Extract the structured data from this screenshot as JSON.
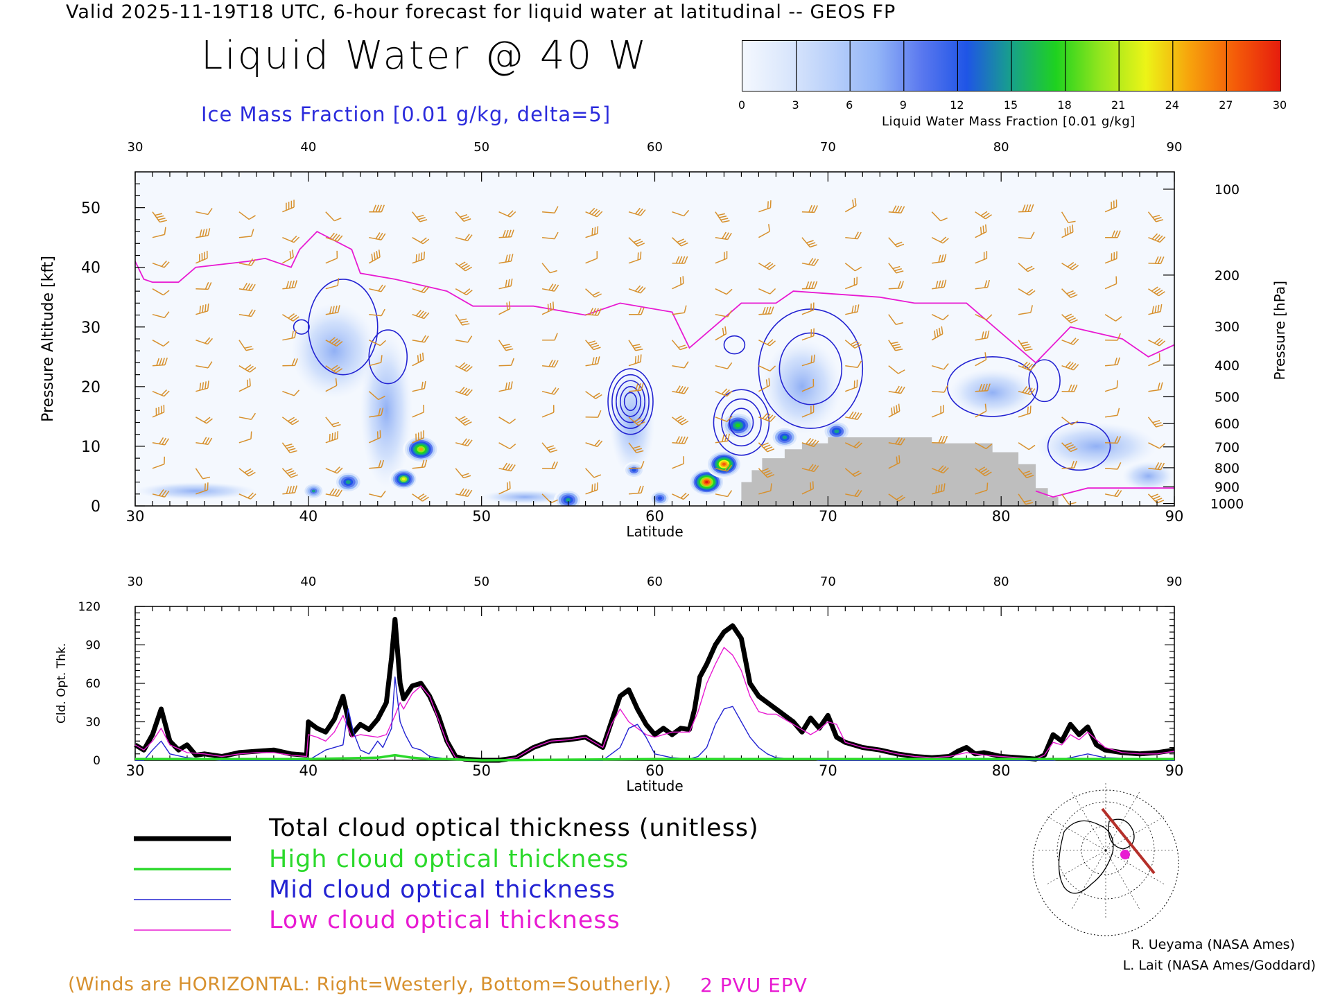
{
  "header": {
    "valid_line": "Valid 2025-11-19T18 UTC, 6-hour forecast for liquid water at latitudinal -- GEOS FP",
    "title": "Liquid Water @ 40 W",
    "subtitle": "Ice Mass Fraction [0.01 g/kg, delta=5]"
  },
  "colorbar": {
    "label": "Liquid Water Mass Fraction [0.01 g/kg]",
    "ticks": [
      "0",
      "3",
      "6",
      "9",
      "12",
      "15",
      "18",
      "21",
      "24",
      "27",
      "30"
    ],
    "colors": [
      "#f4f8fe",
      "#dbe7fc",
      "#b9d0fa",
      "#93b5f7",
      "#5a78ef",
      "#1f55e6",
      "#17a18a",
      "#1fd21f",
      "#96e61e",
      "#ecf417",
      "#f7a10c",
      "#f45b09",
      "#e61d0d"
    ]
  },
  "chart_data": [
    {
      "type": "heatmap",
      "title": "Liquid Water @ 40 W",
      "xlabel": "Latitude",
      "ylabel": "Pressure Altitude [kft]",
      "ylabel_right": "Pressure [hPa]",
      "xlim": [
        30,
        90
      ],
      "ylim": [
        0,
        56
      ],
      "x_ticks": [
        "30",
        "40",
        "50",
        "60",
        "70",
        "80",
        "90"
      ],
      "y_ticks": [
        "0",
        "10",
        "20",
        "30",
        "40",
        "50"
      ],
      "pressure_ticks": [
        "100",
        "200",
        "300",
        "400",
        "500",
        "600",
        "700",
        "800",
        "900",
        "1000"
      ],
      "pressure_alt_kft": [
        53.1,
        38.7,
        30.1,
        23.6,
        18.3,
        13.8,
        9.9,
        6.4,
        3.2,
        0.4
      ],
      "liquid_water_blobs": [
        {
          "lat": 46.5,
          "alt_kft": 9.5,
          "peak": 24,
          "size": 1
        },
        {
          "lat": 45.5,
          "alt_kft": 4.5,
          "peak": 22,
          "size": 0.8
        },
        {
          "lat": 42.3,
          "alt_kft": 4.0,
          "peak": 16,
          "size": 0.8
        },
        {
          "lat": 40.3,
          "alt_kft": 2.5,
          "peak": 14,
          "size": 0.6
        },
        {
          "lat": 63.0,
          "alt_kft": 4.0,
          "peak": 30,
          "size": 1
        },
        {
          "lat": 64.0,
          "alt_kft": 7.0,
          "peak": 28,
          "size": 1
        },
        {
          "lat": 64.8,
          "alt_kft": 13.5,
          "peak": 18,
          "size": 1
        },
        {
          "lat": 67.5,
          "alt_kft": 11.5,
          "peak": 16,
          "size": 0.8
        },
        {
          "lat": 70.5,
          "alt_kft": 12.5,
          "peak": 15,
          "size": 0.8
        },
        {
          "lat": 55.0,
          "alt_kft": 1.0,
          "peak": 16,
          "size": 0.8
        },
        {
          "lat": 58.8,
          "alt_kft": 6.0,
          "peak": 12,
          "size": 0.6
        },
        {
          "lat": 60.3,
          "alt_kft": 1.3,
          "peak": 13,
          "size": 0.6
        }
      ],
      "terrain": [
        [
          65.0,
          0
        ],
        [
          65.0,
          4
        ],
        [
          65.6,
          4
        ],
        [
          65.6,
          6
        ],
        [
          66.2,
          6
        ],
        [
          66.2,
          8
        ],
        [
          67.5,
          8
        ],
        [
          67.5,
          9.5
        ],
        [
          68.5,
          9.5
        ],
        [
          68.5,
          10.5
        ],
        [
          70.0,
          10.5
        ],
        [
          70.0,
          11.5
        ],
        [
          76.0,
          11.5
        ],
        [
          76.0,
          10.5
        ],
        [
          79.5,
          10.5
        ],
        [
          79.5,
          9
        ],
        [
          81.0,
          9
        ],
        [
          81.0,
          7
        ],
        [
          82.0,
          7
        ],
        [
          82.0,
          3
        ],
        [
          82.7,
          3
        ],
        [
          82.7,
          1.5
        ],
        [
          83.3,
          1.5
        ],
        [
          83.3,
          0
        ]
      ],
      "pvu2_epv_line": [
        [
          30,
          41
        ],
        [
          30.5,
          38
        ],
        [
          31,
          37.5
        ],
        [
          32.5,
          37.5
        ],
        [
          33.5,
          40
        ],
        [
          36.5,
          41
        ],
        [
          37.5,
          41.5
        ],
        [
          39,
          40
        ],
        [
          39.5,
          43
        ],
        [
          40.5,
          46
        ],
        [
          42.5,
          43
        ],
        [
          43,
          39
        ],
        [
          45,
          38
        ],
        [
          48,
          36
        ],
        [
          49.5,
          33.5
        ],
        [
          53,
          33.5
        ],
        [
          56,
          32
        ],
        [
          58,
          34
        ],
        [
          61,
          32.5
        ],
        [
          62,
          26.5
        ],
        [
          65,
          34
        ],
        [
          67,
          34
        ],
        [
          68,
          36
        ],
        [
          73,
          35
        ],
        [
          75,
          34
        ],
        [
          78,
          34
        ],
        [
          82,
          24
        ],
        [
          84,
          30
        ],
        [
          87,
          28
        ],
        [
          88.5,
          25
        ],
        [
          90,
          27
        ]
      ],
      "pvu2_low_line": [
        [
          82,
          2.5
        ],
        [
          83,
          1.5
        ],
        [
          85,
          3
        ],
        [
          88,
          3
        ],
        [
          90,
          3
        ]
      ],
      "ice_contours": [
        {
          "lat": 42.0,
          "alt_kft": 30,
          "rx": 2.0,
          "ry": 8,
          "levels": 1
        },
        {
          "lat": 44.6,
          "alt_kft": 25,
          "rx": 1.1,
          "ry": 4.5,
          "levels": 1
        },
        {
          "lat": 39.6,
          "alt_kft": 30,
          "rx": 0.45,
          "ry": 1.2,
          "levels": 1
        },
        {
          "lat": 58.6,
          "alt_kft": 17.5,
          "rx": 1.3,
          "ry": 5.5,
          "levels": 5
        },
        {
          "lat": 64.6,
          "alt_kft": 27,
          "rx": 0.6,
          "ry": 1.5,
          "levels": 1
        },
        {
          "lat": 65.0,
          "alt_kft": 14,
          "rx": 1.6,
          "ry": 5.5,
          "levels": 3
        },
        {
          "lat": 69.0,
          "alt_kft": 23,
          "rx": 3.0,
          "ry": 10,
          "levels": 2
        },
        {
          "lat": 79.5,
          "alt_kft": 20,
          "rx": 2.6,
          "ry": 5,
          "levels": 1
        },
        {
          "lat": 82.5,
          "alt_kft": 21,
          "rx": 0.9,
          "ry": 3.5,
          "levels": 1
        },
        {
          "lat": 84.5,
          "alt_kft": 10,
          "rx": 1.8,
          "ry": 4,
          "levels": 1
        }
      ],
      "ice_shading": [
        {
          "lat": 41.5,
          "alt_kft": 26,
          "rx": 2.5,
          "ry": 8
        },
        {
          "lat": 44.5,
          "alt_kft": 16,
          "rx": 1.5,
          "ry": 13
        },
        {
          "lat": 58.7,
          "alt_kft": 14,
          "rx": 1.3,
          "ry": 9
        },
        {
          "lat": 68.5,
          "alt_kft": 20,
          "rx": 2.3,
          "ry": 8
        },
        {
          "lat": 79.5,
          "alt_kft": 19,
          "rx": 2.5,
          "ry": 4
        },
        {
          "lat": 85.5,
          "alt_kft": 10,
          "rx": 3.5,
          "ry": 4
        },
        {
          "lat": 33.5,
          "alt_kft": 2.5,
          "rx": 3.5,
          "ry": 1.5
        },
        {
          "lat": 52.5,
          "alt_kft": 1.5,
          "rx": 2.5,
          "ry": 1.2
        },
        {
          "lat": 88.5,
          "alt_kft": 5,
          "rx": 1.5,
          "ry": 2.5
        }
      ]
    },
    {
      "type": "line",
      "xlabel": "Latitude",
      "ylabel": "Cld. Opt. Thk.",
      "xlim": [
        30,
        90
      ],
      "ylim": [
        0,
        120
      ],
      "x_ticks": [
        "30",
        "40",
        "50",
        "60",
        "70",
        "80",
        "90"
      ],
      "y_ticks": [
        "0",
        "30",
        "60",
        "90",
        "120"
      ],
      "series": [
        {
          "name": "Total cloud optical thickness (unitless)",
          "color": "#000000",
          "x": [
            30,
            30.5,
            31,
            31.5,
            32,
            32.5,
            33,
            33.5,
            34,
            35,
            36,
            37,
            38,
            39,
            39.9,
            40,
            40.5,
            41,
            41.5,
            42,
            42.5,
            43,
            43.5,
            44,
            44.5,
            44.8,
            45,
            45.3,
            45.5,
            46,
            46.5,
            47,
            47.5,
            48,
            48.5,
            49,
            50,
            51,
            52,
            53,
            54,
            55,
            56,
            57,
            57.5,
            58,
            58.5,
            59,
            59.5,
            60,
            60.5,
            61,
            61.5,
            62,
            62.3,
            62.6,
            63,
            63.5,
            64,
            64.5,
            65,
            65.5,
            66,
            67,
            68,
            68.5,
            69,
            69.5,
            70,
            70.5,
            71,
            72,
            73,
            74,
            75,
            76,
            77,
            77.5,
            78,
            78.5,
            79,
            80,
            81,
            82,
            82.5,
            83,
            83.5,
            84,
            84.5,
            85,
            85.5,
            86,
            87,
            88,
            89,
            90
          ],
          "y": [
            12,
            8,
            20,
            40,
            15,
            8,
            12,
            4,
            5,
            3,
            6,
            7,
            8,
            5,
            4,
            30,
            25,
            22,
            32,
            50,
            20,
            28,
            24,
            32,
            45,
            80,
            110,
            60,
            48,
            58,
            60,
            50,
            35,
            15,
            3,
            1,
            0,
            0,
            2,
            10,
            15,
            16,
            18,
            10,
            30,
            50,
            55,
            40,
            28,
            20,
            25,
            20,
            25,
            24,
            40,
            65,
            75,
            90,
            100,
            105,
            95,
            60,
            50,
            40,
            30,
            22,
            33,
            25,
            35,
            18,
            14,
            10,
            8,
            5,
            3,
            2,
            3,
            7,
            10,
            5,
            6,
            3,
            2,
            1,
            4,
            20,
            15,
            28,
            20,
            26,
            12,
            8,
            6,
            5,
            6,
            8
          ]
        },
        {
          "name": "High cloud optical thickness",
          "color": "#2bd92b",
          "x": [
            30,
            40,
            44,
            45,
            46,
            47,
            48,
            50,
            60,
            70,
            80,
            90
          ],
          "y": [
            1,
            1,
            2,
            4,
            2,
            1,
            1,
            0,
            1,
            1,
            1,
            1
          ]
        },
        {
          "name": "Mid cloud optical thickness",
          "color": "#2323d2",
          "x": [
            30,
            30.5,
            31,
            31.5,
            32,
            33,
            34,
            35,
            40,
            41,
            42,
            42.3,
            42.6,
            43,
            43.5,
            44,
            44.3,
            44.8,
            45,
            45.3,
            45.6,
            46,
            46.5,
            47,
            48,
            50,
            57,
            58,
            58.5,
            59,
            59.5,
            60,
            61,
            62,
            62.5,
            63,
            63.5,
            64,
            64.5,
            65,
            65.5,
            66,
            66.5,
            67,
            68,
            69,
            69.5,
            70,
            71,
            72,
            78,
            83,
            84,
            85,
            86,
            90
          ],
          "y": [
            0,
            0,
            8,
            15,
            5,
            2,
            1,
            0,
            0,
            8,
            12,
            40,
            22,
            8,
            5,
            15,
            10,
            25,
            65,
            30,
            20,
            10,
            8,
            3,
            1,
            0,
            0,
            10,
            25,
            28,
            18,
            5,
            2,
            1,
            3,
            10,
            28,
            40,
            42,
            30,
            18,
            10,
            5,
            2,
            1,
            1,
            0,
            0,
            0,
            0,
            0,
            0,
            2,
            5,
            2,
            0
          ]
        },
        {
          "name": "Low cloud optical thickness",
          "color": "#e81bd2",
          "x": [
            30,
            30.5,
            31,
            31.5,
            32,
            33,
            34,
            35,
            36,
            37,
            38,
            39,
            39.9,
            40,
            40.5,
            41,
            41.5,
            42,
            42.5,
            43,
            44,
            44.5,
            45,
            45.3,
            45.5,
            46,
            46.5,
            47,
            47.5,
            48,
            48.5,
            49,
            50,
            51,
            52,
            53,
            54,
            55,
            56,
            57,
            57.5,
            58,
            58.5,
            59,
            59.5,
            60,
            61,
            62,
            62.5,
            63,
            63.5,
            64,
            64.5,
            65,
            65.5,
            66,
            66.5,
            67,
            68,
            69,
            69.5,
            70,
            70.5,
            71,
            72,
            73,
            74,
            75,
            76,
            77,
            78,
            79,
            80,
            81,
            82,
            82.5,
            83,
            83.5,
            84,
            84.5,
            85,
            86,
            87,
            88,
            89,
            90
          ],
          "y": [
            12,
            8,
            15,
            25,
            12,
            6,
            5,
            3,
            5,
            6,
            6,
            4,
            3,
            20,
            18,
            15,
            22,
            35,
            18,
            20,
            18,
            20,
            35,
            45,
            40,
            52,
            58,
            50,
            32,
            14,
            2,
            0,
            0,
            0,
            2,
            10,
            15,
            16,
            18,
            10,
            28,
            40,
            30,
            25,
            20,
            18,
            22,
            22,
            38,
            60,
            75,
            88,
            82,
            70,
            50,
            38,
            36,
            36,
            28,
            20,
            24,
            30,
            28,
            14,
            10,
            8,
            5,
            3,
            2,
            3,
            6,
            4,
            3,
            2,
            1,
            4,
            14,
            12,
            20,
            16,
            22,
            10,
            6,
            5,
            5,
            7
          ]
        }
      ]
    }
  ],
  "legend": {
    "total": "Total cloud optical thickness (unitless)",
    "high": "High cloud optical thickness",
    "mid": "Mid cloud optical thickness",
    "low": "Low cloud optical thickness"
  },
  "notes": {
    "winds": "(Winds are HORIZONTAL: Right=Westerly, Bottom=Southerly.)",
    "pvu": "2 PVU EPV"
  },
  "credits": {
    "line1": "R. Ueyama (NASA Ames)",
    "line2": "L. Lait (NASA Ames/Goddard)"
  },
  "colors": {
    "wind_barb": "#d7902d",
    "ice_contour": "#2323d2",
    "epv_line": "#e81bd2",
    "terrain": "#bebebe",
    "map_track": "#b5302a",
    "map_marker": "#e81bd2"
  }
}
